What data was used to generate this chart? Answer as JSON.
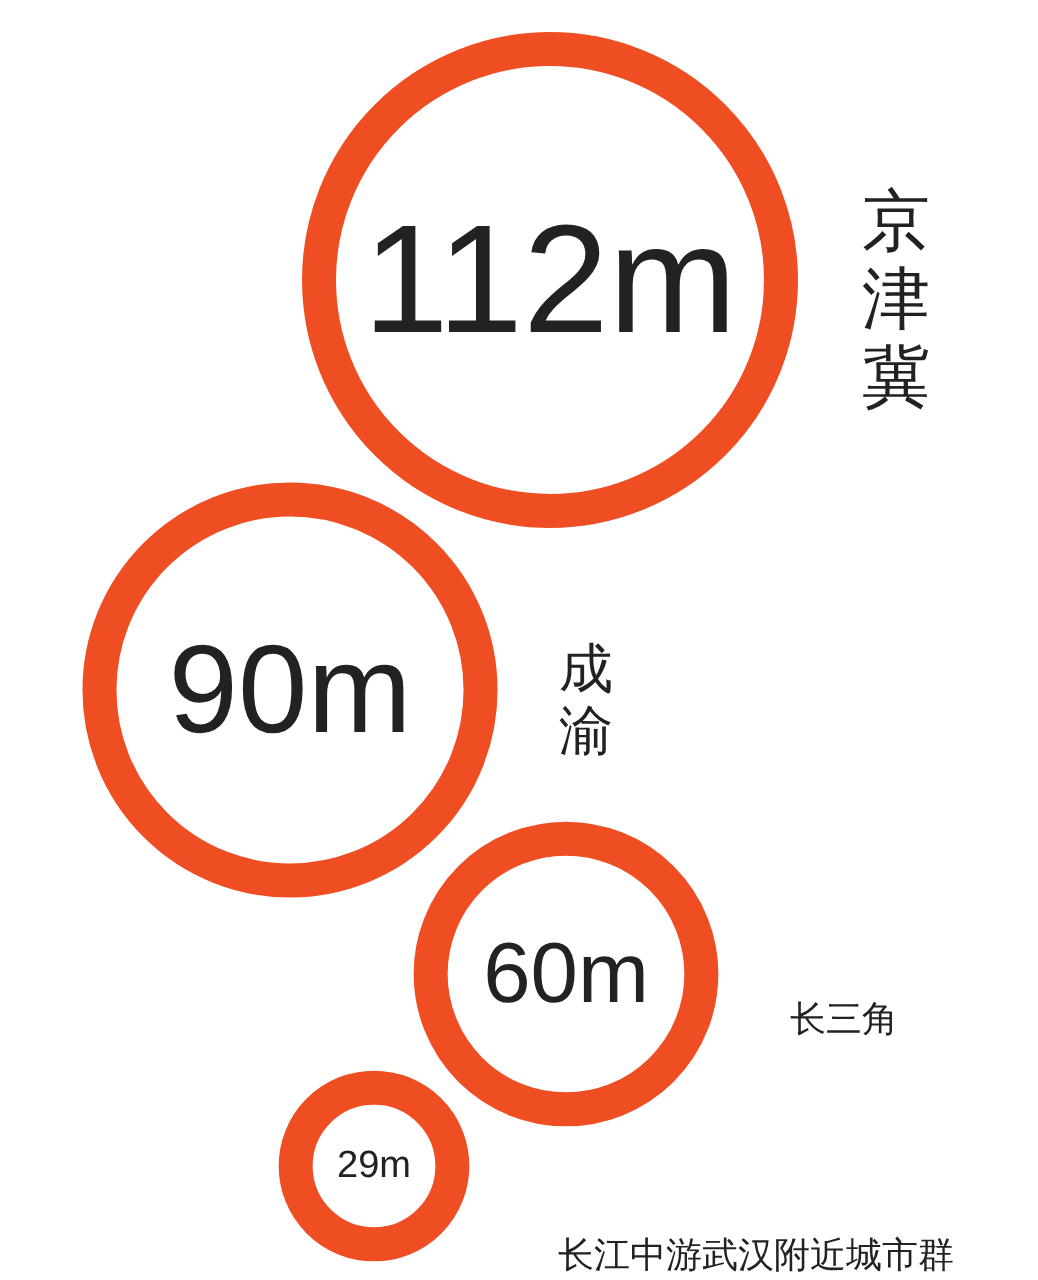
{
  "chart_data": {
    "type": "other",
    "categories": [
      "京津冀",
      "成渝",
      "长三角",
      "长江中游武汉附近城市群"
    ],
    "values": [
      112,
      90,
      60,
      29
    ],
    "value_labels": [
      "112m",
      "90m",
      "60m",
      "29m"
    ],
    "color": "#ef4e23"
  }
}
